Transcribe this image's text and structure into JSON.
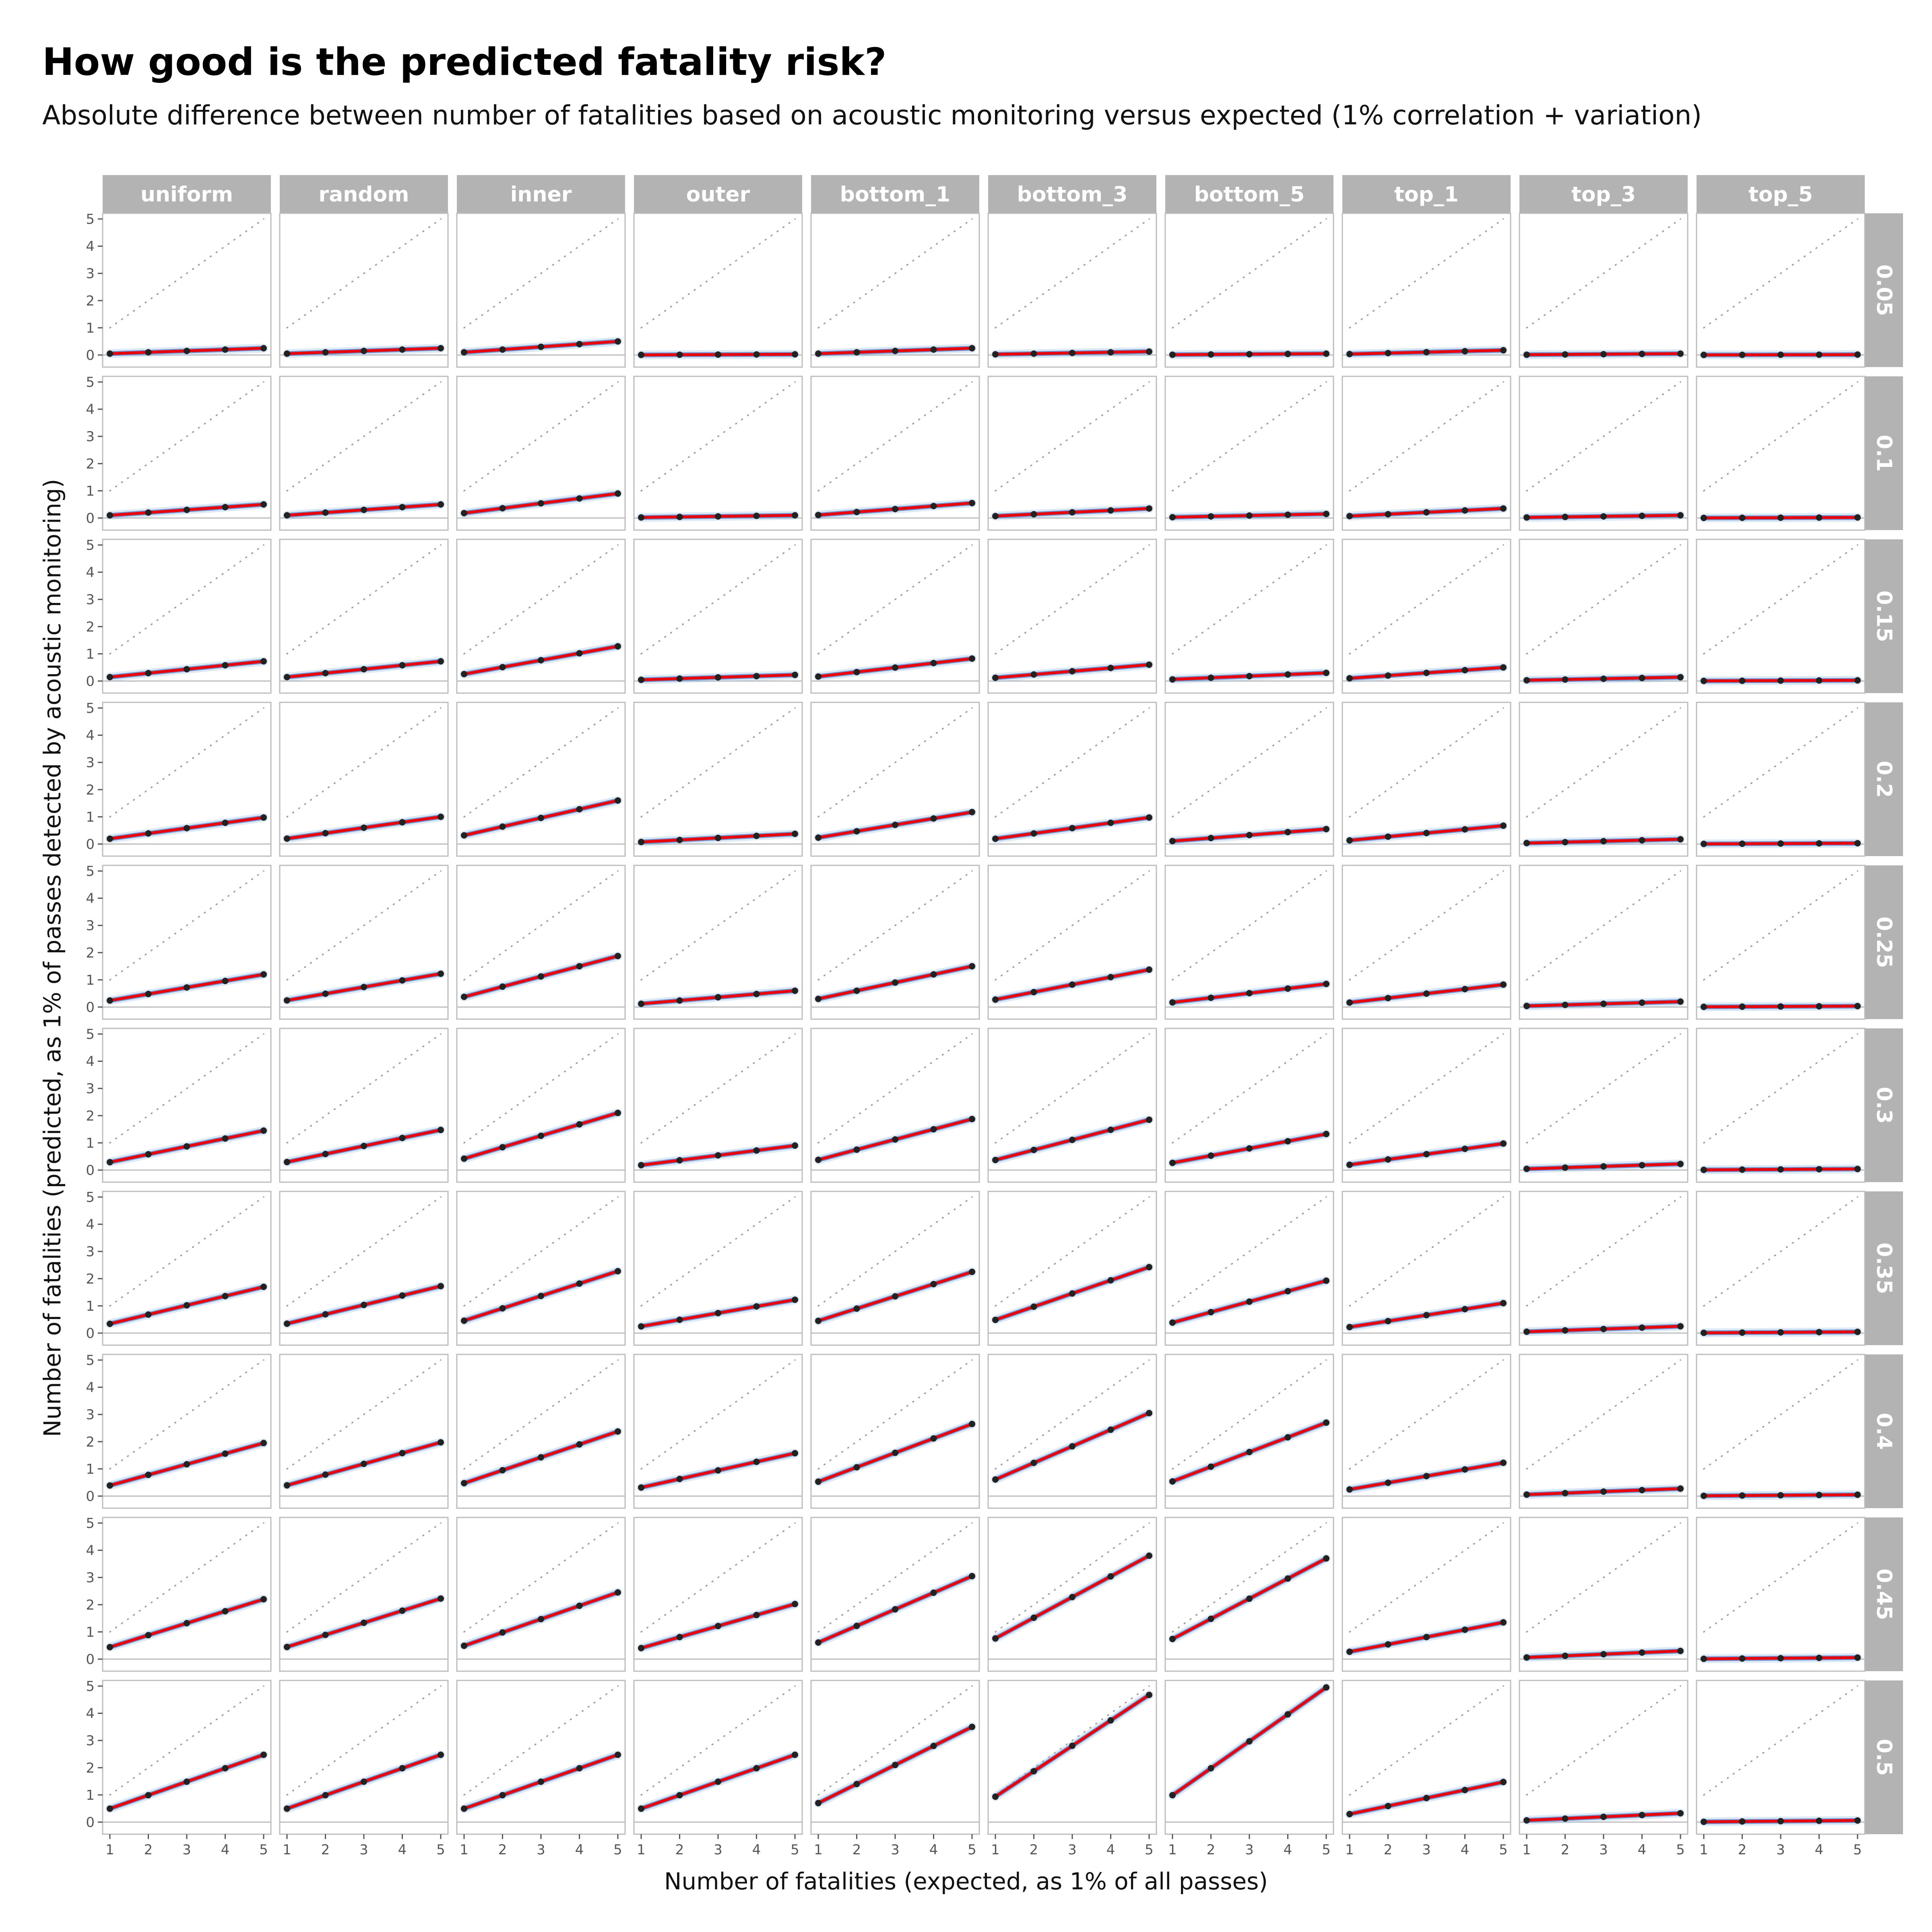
{
  "title": "How good is the predicted fatality risk?",
  "subtitle": "Absolute difference between number of fatalities based on acoustic monitoring versus expected (1% correlation + variation)",
  "chart_data": {
    "type": "line",
    "xlabel": "Number of fatalities (expected, as 1% of all passes)",
    "ylabel": "Number of fatalities (predicted, as 1% of passes detected by acoustic monitoring)",
    "x": [
      1,
      2,
      3,
      4,
      5
    ],
    "xlim": [
      1,
      5
    ],
    "ylim": [
      0,
      5
    ],
    "xticks": [
      "1",
      "2",
      "3",
      "4",
      "5"
    ],
    "yticks": [
      "0",
      "1",
      "2",
      "3",
      "4",
      "5"
    ],
    "columns": [
      "uniform",
      "random",
      "inner",
      "outer",
      "bottom_1",
      "bottom_3",
      "bottom_5",
      "top_1",
      "top_3",
      "top_5"
    ],
    "rows": [
      "0.05",
      "0.1",
      "0.15",
      "0.2",
      "0.25",
      "0.3",
      "0.35",
      "0.4",
      "0.45",
      "0.5"
    ],
    "reference_line": "y = x (dotted grey)",
    "mean_line_color": "#e8000b",
    "simulation_line_color": "#5b7fc7",
    "point_color": "#222222",
    "strip_color": "#b3b3b3",
    "slopes": [
      [
        0.05,
        0.05,
        0.1,
        0.005,
        0.05,
        0.025,
        0.01,
        0.035,
        0.01,
        0.003
      ],
      [
        0.1,
        0.1,
        0.18,
        0.02,
        0.11,
        0.07,
        0.03,
        0.07,
        0.02,
        0.004
      ],
      [
        0.145,
        0.145,
        0.255,
        0.045,
        0.165,
        0.12,
        0.06,
        0.1,
        0.028,
        0.005
      ],
      [
        0.195,
        0.2,
        0.32,
        0.075,
        0.235,
        0.195,
        0.11,
        0.135,
        0.035,
        0.006
      ],
      [
        0.24,
        0.245,
        0.375,
        0.12,
        0.3,
        0.275,
        0.17,
        0.165,
        0.04,
        0.007
      ],
      [
        0.29,
        0.295,
        0.42,
        0.18,
        0.375,
        0.37,
        0.265,
        0.195,
        0.045,
        0.008
      ],
      [
        0.34,
        0.345,
        0.455,
        0.245,
        0.45,
        0.485,
        0.385,
        0.22,
        0.05,
        0.009
      ],
      [
        0.39,
        0.395,
        0.475,
        0.315,
        0.53,
        0.61,
        0.54,
        0.245,
        0.055,
        0.01
      ],
      [
        0.44,
        0.445,
        0.49,
        0.405,
        0.61,
        0.76,
        0.74,
        0.27,
        0.06,
        0.011
      ],
      [
        0.495,
        0.495,
        0.495,
        0.495,
        0.7,
        0.935,
        0.99,
        0.295,
        0.065,
        0.012
      ]
    ]
  }
}
